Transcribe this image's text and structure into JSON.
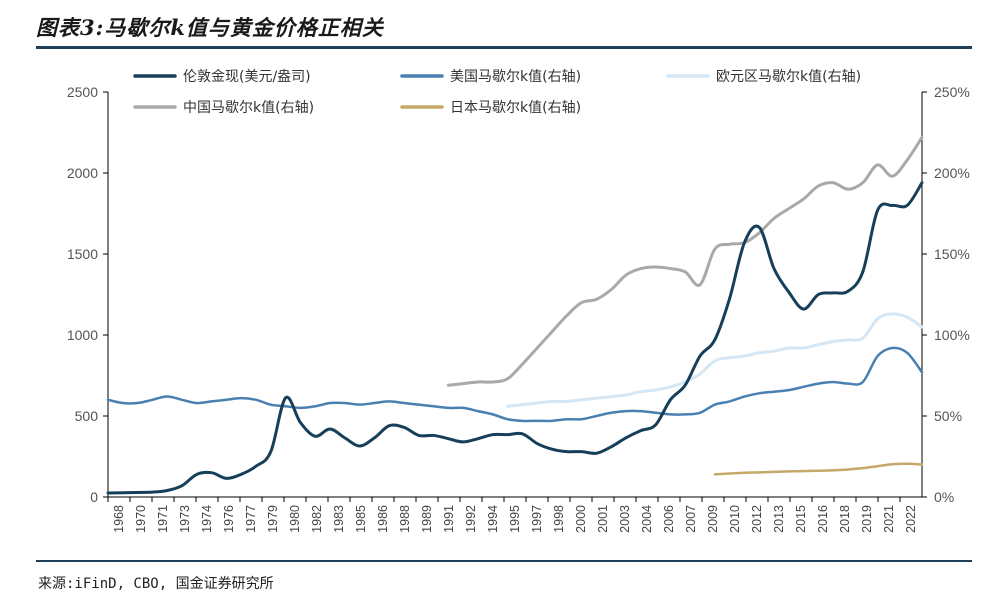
{
  "title": "图表3:马歇尔k值与黄金价格正相关",
  "source": "来源:iFinD, CBO, 国金证券研究所",
  "chart_data": {
    "type": "line",
    "y_left": {
      "range": [
        0,
        2500
      ],
      "ticks": [
        0,
        500,
        1000,
        1500,
        2000,
        2500
      ],
      "tick_labels": [
        "0",
        "500",
        "1000",
        "1500",
        "2000",
        "2500"
      ]
    },
    "y_right": {
      "range": [
        0,
        2.5
      ],
      "ticks": [
        0,
        0.5,
        1.0,
        1.5,
        2.0,
        2.5
      ],
      "tick_labels": [
        "0%",
        "50%",
        "100%",
        "150%",
        "200%",
        "250%"
      ]
    },
    "x_range": [
      1968,
      2023
    ],
    "x_tick_labels": [
      "1968",
      "1970",
      "1971",
      "1973",
      "1974",
      "1976",
      "1977",
      "1979",
      "1980",
      "1982",
      "1983",
      "1985",
      "1986",
      "1988",
      "1989",
      "1991",
      "1992",
      "1994",
      "1995",
      "1997",
      "1998",
      "2000",
      "2001",
      "2003",
      "2004",
      "2006",
      "2007",
      "2009",
      "2010",
      "2012",
      "2013",
      "2015",
      "2016",
      "2018",
      "2019",
      "2021",
      "2022"
    ],
    "grid": false,
    "legend_position": "top",
    "series": [
      {
        "name": "伦敦金现(美元/盎司)",
        "axis": "left",
        "color": "#16405a",
        "width": 3,
        "points": [
          [
            1968,
            25
          ],
          [
            1970,
            28
          ],
          [
            1971,
            30
          ],
          [
            1972,
            40
          ],
          [
            1973,
            70
          ],
          [
            1974,
            140
          ],
          [
            1975,
            150
          ],
          [
            1976,
            115
          ],
          [
            1977,
            140
          ],
          [
            1978,
            190
          ],
          [
            1979,
            280
          ],
          [
            1980,
            612
          ],
          [
            1981,
            460
          ],
          [
            1982,
            375
          ],
          [
            1983,
            420
          ],
          [
            1984,
            365
          ],
          [
            1985,
            315
          ],
          [
            1986,
            365
          ],
          [
            1987,
            440
          ],
          [
            1988,
            430
          ],
          [
            1989,
            380
          ],
          [
            1990,
            380
          ],
          [
            1991,
            360
          ],
          [
            1992,
            340
          ],
          [
            1993,
            360
          ],
          [
            1994,
            385
          ],
          [
            1995,
            385
          ],
          [
            1996,
            390
          ],
          [
            1997,
            330
          ],
          [
            1998,
            295
          ],
          [
            1999,
            280
          ],
          [
            2000,
            280
          ],
          [
            2001,
            270
          ],
          [
            2002,
            310
          ],
          [
            2003,
            365
          ],
          [
            2004,
            410
          ],
          [
            2005,
            445
          ],
          [
            2006,
            600
          ],
          [
            2007,
            690
          ],
          [
            2008,
            870
          ],
          [
            2009,
            970
          ],
          [
            2010,
            1225
          ],
          [
            2011,
            1570
          ],
          [
            2012,
            1665
          ],
          [
            2013,
            1410
          ],
          [
            2014,
            1265
          ],
          [
            2015,
            1160
          ],
          [
            2016,
            1250
          ],
          [
            2017,
            1260
          ],
          [
            2018,
            1270
          ],
          [
            2019,
            1390
          ],
          [
            2020,
            1770
          ],
          [
            2021,
            1800
          ],
          [
            2022,
            1800
          ],
          [
            2023,
            1940
          ]
        ]
      },
      {
        "name": "美国马歇尔k值(右轴)",
        "axis": "right",
        "color": "#4a7fb1",
        "width": 2.5,
        "points": [
          [
            1968,
            0.6
          ],
          [
            1969,
            0.58
          ],
          [
            1970,
            0.58
          ],
          [
            1971,
            0.6
          ],
          [
            1972,
            0.62
          ],
          [
            1973,
            0.6
          ],
          [
            1974,
            0.58
          ],
          [
            1975,
            0.59
          ],
          [
            1976,
            0.6
          ],
          [
            1977,
            0.61
          ],
          [
            1978,
            0.6
          ],
          [
            1979,
            0.57
          ],
          [
            1980,
            0.56
          ],
          [
            1981,
            0.55
          ],
          [
            1982,
            0.56
          ],
          [
            1983,
            0.58
          ],
          [
            1984,
            0.58
          ],
          [
            1985,
            0.57
          ],
          [
            1986,
            0.58
          ],
          [
            1987,
            0.59
          ],
          [
            1988,
            0.58
          ],
          [
            1989,
            0.57
          ],
          [
            1990,
            0.56
          ],
          [
            1991,
            0.55
          ],
          [
            1992,
            0.55
          ],
          [
            1993,
            0.53
          ],
          [
            1994,
            0.51
          ],
          [
            1995,
            0.48
          ],
          [
            1996,
            0.47
          ],
          [
            1997,
            0.47
          ],
          [
            1998,
            0.47
          ],
          [
            1999,
            0.48
          ],
          [
            2000,
            0.48
          ],
          [
            2001,
            0.5
          ],
          [
            2002,
            0.52
          ],
          [
            2003,
            0.53
          ],
          [
            2004,
            0.53
          ],
          [
            2005,
            0.52
          ],
          [
            2006,
            0.51
          ],
          [
            2007,
            0.51
          ],
          [
            2008,
            0.52
          ],
          [
            2009,
            0.57
          ],
          [
            2010,
            0.59
          ],
          [
            2011,
            0.62
          ],
          [
            2012,
            0.64
          ],
          [
            2013,
            0.65
          ],
          [
            2014,
            0.66
          ],
          [
            2015,
            0.68
          ],
          [
            2016,
            0.7
          ],
          [
            2017,
            0.71
          ],
          [
            2018,
            0.7
          ],
          [
            2019,
            0.71
          ],
          [
            2020,
            0.87
          ],
          [
            2021,
            0.92
          ],
          [
            2022,
            0.89
          ],
          [
            2023,
            0.77
          ]
        ]
      },
      {
        "name": "欧元区马歇尔k值(右轴)",
        "axis": "right",
        "color": "#d5e6f4",
        "width": 3,
        "points": [
          [
            1995,
            0.56
          ],
          [
            1996,
            0.57
          ],
          [
            1997,
            0.58
          ],
          [
            1998,
            0.59
          ],
          [
            1999,
            0.59
          ],
          [
            2000,
            0.6
          ],
          [
            2001,
            0.61
          ],
          [
            2002,
            0.62
          ],
          [
            2003,
            0.63
          ],
          [
            2004,
            0.65
          ],
          [
            2005,
            0.66
          ],
          [
            2006,
            0.68
          ],
          [
            2007,
            0.71
          ],
          [
            2008,
            0.76
          ],
          [
            2009,
            0.84
          ],
          [
            2010,
            0.86
          ],
          [
            2011,
            0.87
          ],
          [
            2012,
            0.89
          ],
          [
            2013,
            0.9
          ],
          [
            2014,
            0.92
          ],
          [
            2015,
            0.92
          ],
          [
            2016,
            0.94
          ],
          [
            2017,
            0.96
          ],
          [
            2018,
            0.97
          ],
          [
            2019,
            0.98
          ],
          [
            2020,
            1.1
          ],
          [
            2021,
            1.13
          ],
          [
            2022,
            1.11
          ],
          [
            2023,
            1.05
          ]
        ]
      },
      {
        "name": "中国马歇尔k值(右轴)",
        "axis": "right",
        "color": "#a9a9a9",
        "width": 3,
        "points": [
          [
            1991,
            0.69
          ],
          [
            1992,
            0.7
          ],
          [
            1993,
            0.71
          ],
          [
            1994,
            0.71
          ],
          [
            1995,
            0.73
          ],
          [
            1996,
            0.82
          ],
          [
            1997,
            0.92
          ],
          [
            1998,
            1.02
          ],
          [
            1999,
            1.12
          ],
          [
            2000,
            1.2
          ],
          [
            2001,
            1.22
          ],
          [
            2002,
            1.28
          ],
          [
            2003,
            1.37
          ],
          [
            2004,
            1.41
          ],
          [
            2005,
            1.42
          ],
          [
            2006,
            1.41
          ],
          [
            2007,
            1.39
          ],
          [
            2008,
            1.31
          ],
          [
            2009,
            1.53
          ],
          [
            2010,
            1.56
          ],
          [
            2011,
            1.57
          ],
          [
            2012,
            1.63
          ],
          [
            2013,
            1.72
          ],
          [
            2014,
            1.78
          ],
          [
            2015,
            1.84
          ],
          [
            2016,
            1.92
          ],
          [
            2017,
            1.94
          ],
          [
            2018,
            1.9
          ],
          [
            2019,
            1.94
          ],
          [
            2020,
            2.05
          ],
          [
            2021,
            1.98
          ],
          [
            2022,
            2.08
          ],
          [
            2023,
            2.22
          ]
        ]
      },
      {
        "name": "日本马歇尔k值(右轴)",
        "axis": "right",
        "color": "#c5a86a",
        "width": 2.5,
        "points": [
          [
            2009,
            0.14
          ],
          [
            2010,
            0.145
          ],
          [
            2011,
            0.15
          ],
          [
            2012,
            0.152
          ],
          [
            2013,
            0.155
          ],
          [
            2014,
            0.158
          ],
          [
            2015,
            0.16
          ],
          [
            2016,
            0.162
          ],
          [
            2017,
            0.165
          ],
          [
            2018,
            0.17
          ],
          [
            2019,
            0.178
          ],
          [
            2020,
            0.19
          ],
          [
            2021,
            0.202
          ],
          [
            2022,
            0.205
          ],
          [
            2023,
            0.2
          ]
        ]
      }
    ]
  }
}
